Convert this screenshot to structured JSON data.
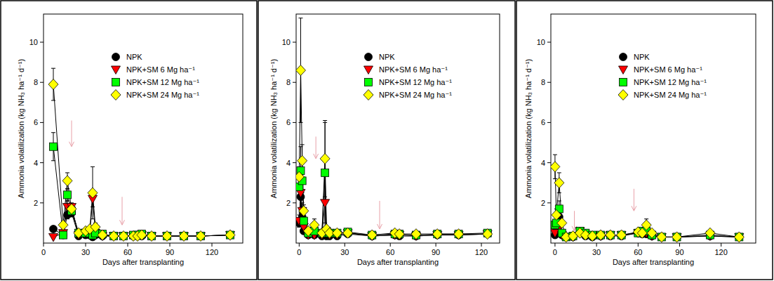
{
  "chart_data": [
    {
      "type": "line",
      "x_label": "Days after transplanting",
      "y_label": "Ammonia volatilization (kg NH₃ ha⁻¹ d⁻¹)",
      "xlim": [
        0,
        142
      ],
      "ylim": [
        0,
        11.4
      ],
      "xticks": [
        0,
        30,
        60,
        90,
        120
      ],
      "yticks": [
        2,
        4,
        6,
        8,
        10
      ],
      "legend": "upper right",
      "x": [
        7,
        14,
        17,
        20,
        25,
        30,
        33,
        35,
        37,
        42,
        50,
        57,
        64,
        67,
        70,
        77,
        88,
        100,
        112,
        133
      ],
      "arrows": [
        {
          "x": 20,
          "y_start": 6.1,
          "y_end": 4.8
        },
        {
          "x": 56,
          "y_start": 2.3,
          "y_end": 0.9
        }
      ],
      "series": [
        {
          "name": "NPK",
          "color": "#000000",
          "marker": "circle",
          "values": [
            0.7,
            0.4,
            1.4,
            1.5,
            0.35,
            0.4,
            0.4,
            0.3,
            0.4,
            0.35,
            0.35,
            0.35,
            0.35,
            0.35,
            0.35,
            0.35,
            0.35,
            0.35,
            0.35,
            0.4
          ],
          "errors": [
            null,
            null,
            0.2,
            0.2,
            null,
            null,
            null,
            null,
            null,
            null,
            null,
            null,
            null,
            null,
            null,
            null,
            null,
            null,
            null,
            null
          ]
        },
        {
          "name": "NPK+SM 6 Mg ha⁻¹",
          "color": "#ff0000",
          "marker": "triangle-down",
          "values": [
            0.3,
            0.5,
            1.8,
            1.8,
            0.4,
            0.5,
            0.5,
            2.2,
            0.5,
            0.35,
            0.35,
            0.35,
            0.35,
            0.35,
            0.4,
            0.35,
            0.35,
            0.35,
            0.35,
            0.4
          ],
          "errors": [
            null,
            null,
            0.3,
            0.2,
            null,
            null,
            null,
            0.4,
            null,
            null,
            null,
            null,
            null,
            null,
            null,
            null,
            null,
            null,
            null,
            null
          ]
        },
        {
          "name": "NPK+SM 12 Mg ha⁻¹",
          "color": "#00ff00",
          "marker": "square",
          "values": [
            4.8,
            0.4,
            2.4,
            1.6,
            0.5,
            0.5,
            0.5,
            0.4,
            0.5,
            0.45,
            0.35,
            0.35,
            0.4,
            0.4,
            0.45,
            0.35,
            0.35,
            0.35,
            0.35,
            0.4
          ],
          "errors": [
            0.7,
            null,
            0.3,
            0.2,
            null,
            null,
            null,
            null,
            null,
            null,
            null,
            null,
            null,
            null,
            null,
            null,
            null,
            null,
            null,
            null
          ]
        },
        {
          "name": "NPK+SM 24 Mg ha⁻¹",
          "color": "#ffff00",
          "marker": "diamond",
          "values": [
            7.9,
            0.9,
            3.1,
            1.7,
            0.5,
            0.6,
            0.7,
            2.5,
            0.8,
            0.4,
            0.35,
            0.35,
            0.35,
            0.35,
            0.4,
            0.35,
            0.35,
            0.35,
            0.35,
            0.4
          ],
          "errors": [
            0.8,
            0.2,
            0.4,
            0.2,
            null,
            null,
            null,
            1.3,
            0.2,
            null,
            null,
            null,
            null,
            null,
            null,
            null,
            null,
            null,
            null,
            null
          ]
        }
      ]
    },
    {
      "type": "line",
      "x_label": "Days after transplanting",
      "y_label": "Ammonia volatilization (kg NH₃ ha⁻¹ d⁻¹)",
      "xlim": [
        -2,
        132
      ],
      "ylim": [
        0,
        11.4
      ],
      "xticks": [
        0,
        30,
        60,
        90,
        120
      ],
      "yticks": [
        2,
        4,
        6,
        8,
        10
      ],
      "legend": "upper right",
      "x": [
        0,
        1,
        2,
        3,
        6,
        10,
        15,
        17,
        18,
        20,
        25,
        32,
        48,
        63,
        66,
        77,
        91,
        105,
        124
      ],
      "arrows": [
        {
          "x": 11,
          "y_start": 5.3,
          "y_end": 4.2
        },
        {
          "x": 53,
          "y_start": 2.1,
          "y_end": 0.7
        }
      ],
      "series": [
        {
          "name": "NPK",
          "color": "#000000",
          "marker": "circle",
          "values": [
            1.0,
            2.3,
            1.3,
            0.6,
            0.4,
            0.4,
            0.35,
            0.4,
            0.35,
            0.35,
            0.35,
            0.45,
            0.35,
            0.4,
            0.35,
            0.35,
            0.4,
            0.4,
            0.45
          ],
          "errors": [
            0.2,
            0.8,
            0.3,
            null,
            null,
            null,
            null,
            null,
            null,
            null,
            null,
            null,
            null,
            null,
            null,
            null,
            null,
            null,
            null
          ]
        },
        {
          "name": "NPK+SM 6 Mg ha⁻¹",
          "color": "#ff0000",
          "marker": "triangle-down",
          "values": [
            1.1,
            2.5,
            1.6,
            0.8,
            0.4,
            0.4,
            0.4,
            2.0,
            0.5,
            0.4,
            0.4,
            0.5,
            0.35,
            0.4,
            0.4,
            0.35,
            0.4,
            0.4,
            0.45
          ],
          "errors": [
            0.3,
            0.9,
            0.4,
            null,
            null,
            null,
            null,
            1.6,
            null,
            null,
            null,
            null,
            null,
            null,
            null,
            null,
            null,
            null,
            null
          ]
        },
        {
          "name": "NPK+SM 12 Mg ha⁻¹",
          "color": "#00ff00",
          "marker": "square",
          "values": [
            2.8,
            3.6,
            3.1,
            1.1,
            0.5,
            0.6,
            0.5,
            3.5,
            0.6,
            0.5,
            0.5,
            0.55,
            0.4,
            0.45,
            0.45,
            0.4,
            0.45,
            0.45,
            0.5
          ],
          "errors": [
            0.4,
            1.2,
            0.6,
            null,
            null,
            null,
            null,
            2.5,
            null,
            null,
            null,
            null,
            null,
            null,
            null,
            null,
            null,
            null,
            null
          ]
        },
        {
          "name": "NPK+SM 24 Mg ha⁻¹",
          "color": "#ffff00",
          "marker": "diamond",
          "values": [
            3.3,
            8.6,
            4.1,
            1.6,
            0.6,
            0.9,
            0.5,
            4.2,
            0.7,
            0.5,
            0.5,
            0.5,
            0.4,
            0.5,
            0.45,
            0.45,
            0.45,
            0.45,
            0.45
          ],
          "errors": [
            0.5,
            2.6,
            0.8,
            0.3,
            null,
            0.3,
            null,
            1.9,
            null,
            null,
            null,
            null,
            null,
            null,
            null,
            null,
            null,
            null,
            null
          ]
        }
      ]
    },
    {
      "type": "line",
      "x_label": "Days after transplanting",
      "y_label": "Ammonia volatilization (kg NH₃ ha⁻¹ d⁻¹)",
      "xlim": [
        -3,
        145
      ],
      "ylim": [
        0,
        11.4
      ],
      "xticks": [
        0,
        30,
        60,
        90,
        120
      ],
      "yticks": [
        2,
        4,
        6,
        8,
        10
      ],
      "legend": "upper right",
      "x": [
        0,
        1,
        3,
        5,
        8,
        13,
        18,
        22,
        27,
        33,
        40,
        48,
        60,
        63,
        66,
        70,
        77,
        88,
        112,
        133
      ],
      "arrows": [
        {
          "x": 14,
          "y_start": 1.6,
          "y_end": 0.6
        },
        {
          "x": 57,
          "y_start": 2.7,
          "y_end": 1.6
        }
      ],
      "series": [
        {
          "name": "NPK",
          "color": "#000000",
          "marker": "circle",
          "values": [
            0.4,
            0.7,
            1.3,
            0.4,
            0.3,
            0.3,
            0.5,
            0.35,
            0.3,
            0.35,
            0.35,
            0.35,
            0.5,
            0.45,
            0.45,
            0.35,
            0.3,
            0.3,
            0.35,
            0.3
          ],
          "errors": [
            null,
            0.2,
            0.3,
            null,
            null,
            null,
            null,
            null,
            null,
            null,
            null,
            null,
            null,
            null,
            null,
            null,
            null,
            null,
            null,
            null
          ]
        },
        {
          "name": "NPK+SM 6 Mg ha⁻¹",
          "color": "#ff0000",
          "marker": "triangle-down",
          "values": [
            0.5,
            0.9,
            0.8,
            0.4,
            0.3,
            0.3,
            0.6,
            0.4,
            0.35,
            0.35,
            0.4,
            0.4,
            0.5,
            0.5,
            0.5,
            0.35,
            0.3,
            0.3,
            0.35,
            0.3
          ],
          "errors": [
            0.2,
            0.2,
            0.2,
            null,
            null,
            null,
            null,
            null,
            null,
            null,
            null,
            null,
            null,
            null,
            null,
            null,
            null,
            null,
            null,
            null
          ]
        },
        {
          "name": "NPK+SM 12 Mg ha⁻¹",
          "color": "#00ff00",
          "marker": "square",
          "values": [
            0.9,
            1.0,
            1.7,
            0.5,
            0.3,
            0.35,
            0.6,
            0.5,
            0.4,
            0.4,
            0.4,
            0.4,
            0.5,
            0.6,
            0.6,
            0.4,
            0.3,
            0.3,
            0.4,
            0.3
          ],
          "errors": [
            0.2,
            0.3,
            0.4,
            null,
            null,
            null,
            null,
            null,
            null,
            null,
            null,
            null,
            null,
            null,
            null,
            null,
            null,
            null,
            null,
            null
          ]
        },
        {
          "name": "NPK+SM 24 Mg ha⁻¹",
          "color": "#ffff00",
          "marker": "diamond",
          "values": [
            3.8,
            1.4,
            3.0,
            1.0,
            0.3,
            0.35,
            0.5,
            0.4,
            0.35,
            0.4,
            0.4,
            0.4,
            0.55,
            0.5,
            0.9,
            0.5,
            0.3,
            0.3,
            0.5,
            0.3
          ],
          "errors": [
            0.6,
            0.3,
            0.5,
            null,
            null,
            null,
            null,
            null,
            null,
            null,
            null,
            null,
            null,
            null,
            0.3,
            null,
            null,
            null,
            null,
            null
          ]
        }
      ]
    }
  ]
}
